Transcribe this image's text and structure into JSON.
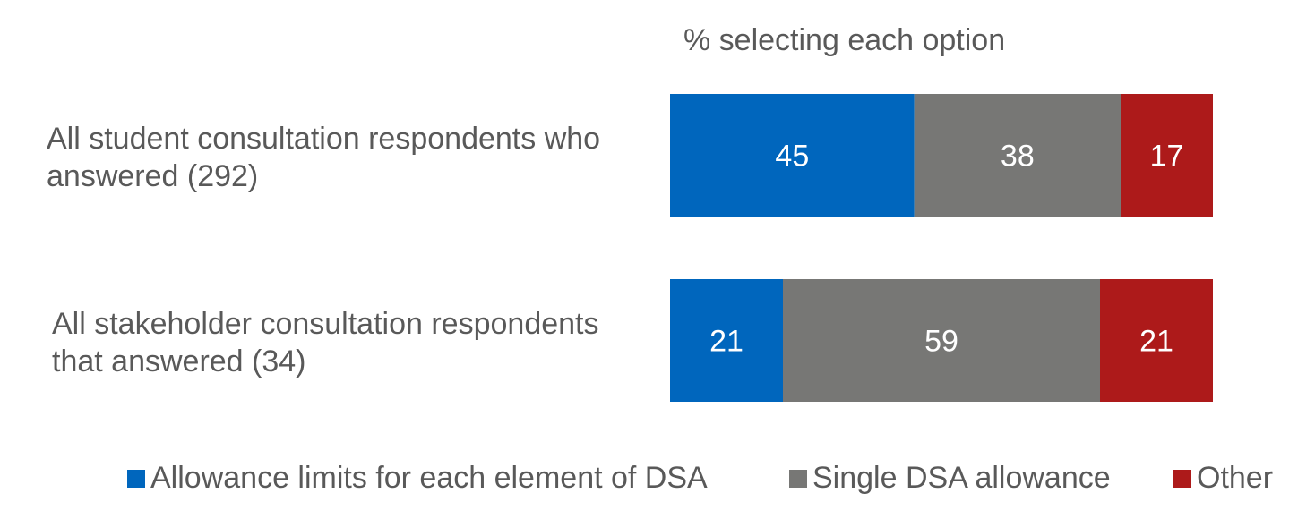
{
  "chart_data": {
    "type": "bar",
    "orientation": "horizontal",
    "stacked": true,
    "axis_title": "% selecting each option",
    "categories": [
      "All student consultation respondents who answered (292)",
      "All stakeholder consultation respondents that answered (34)"
    ],
    "category_lines": [
      [
        "All student consultation respondents who",
        "answered (292)"
      ],
      [
        "All stakeholder consultation respondents",
        "that answered (34)"
      ]
    ],
    "series": [
      {
        "name": "Allowance limits for each element of DSA",
        "color": "#0066BD",
        "values": [
          45,
          21
        ]
      },
      {
        "name": "Single DSA allowance",
        "color": "#777775",
        "values": [
          38,
          59
        ]
      },
      {
        "name": "Other",
        "color": "#AD1A1A",
        "values": [
          17,
          21
        ]
      }
    ],
    "data_labels": true,
    "grid": false,
    "legend_position": "bottom"
  }
}
